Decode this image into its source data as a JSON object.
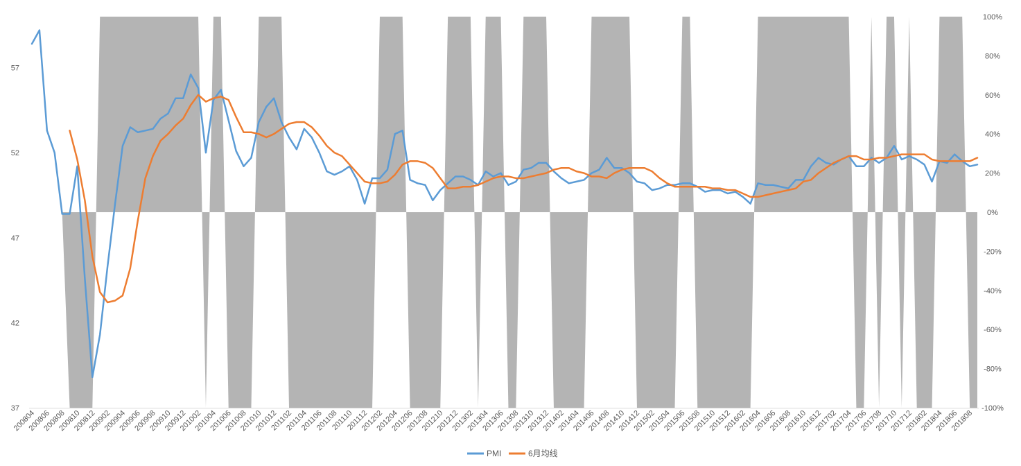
{
  "chart_data": {
    "type": "line",
    "title": "",
    "x": [
      "200804",
      "200805",
      "200806",
      "200807",
      "200808",
      "200809",
      "200810",
      "200811",
      "200812",
      "200901",
      "200902",
      "200903",
      "200904",
      "200905",
      "200906",
      "200907",
      "200908",
      "200909",
      "200910",
      "200911",
      "200912",
      "201001",
      "201002",
      "201003",
      "201004",
      "201005",
      "201006",
      "201007",
      "201008",
      "201009",
      "201010",
      "201011",
      "201012",
      "201101",
      "201102",
      "201103",
      "201104",
      "201105",
      "201106",
      "201107",
      "201108",
      "201109",
      "201110",
      "201111",
      "201112",
      "201201",
      "201202",
      "201203",
      "201204",
      "201205",
      "201206",
      "201207",
      "201208",
      "201209",
      "201210",
      "201211",
      "201212",
      "201301",
      "201302",
      "201303",
      "201304",
      "201305",
      "201306",
      "201307",
      "201308",
      "201309",
      "201310",
      "201311",
      "201312",
      "201401",
      "201402",
      "201403",
      "201404",
      "201405",
      "201406",
      "201407",
      "201408",
      "201409",
      "201410",
      "201411",
      "201412",
      "201501",
      "201502",
      "201503",
      "201504",
      "201505",
      "201506",
      "201507",
      "201508",
      "201509",
      "201510",
      "201511",
      "201512",
      "201601",
      "201602",
      "201603",
      "201604",
      "201605",
      "201606",
      "201607",
      "201608",
      "201609",
      "201610",
      "201611",
      "201612",
      "201701",
      "201702",
      "201703",
      "201704",
      "201705",
      "201706",
      "201707",
      "201708",
      "201709",
      "201710",
      "201711",
      "201712",
      "201801",
      "201802",
      "201803",
      "201804",
      "201805",
      "201806",
      "201807",
      "201808",
      "201809"
    ],
    "x_tick_labels": [
      "200804",
      "200806",
      "200808",
      "200810",
      "200812",
      "200902",
      "200904",
      "200906",
      "200908",
      "200910",
      "200912",
      "201002",
      "201004",
      "201006",
      "201008",
      "201010",
      "201012",
      "201102",
      "201104",
      "201106",
      "201108",
      "201110",
      "201112",
      "201202",
      "201204",
      "201206",
      "201208",
      "201210",
      "201212",
      "201302",
      "201304",
      "201306",
      "201308",
      "201310",
      "201312",
      "201402",
      "201404",
      "201406",
      "201408",
      "201410",
      "201412",
      "201502",
      "201504",
      "201506",
      "201508",
      "201510",
      "201512",
      "201602",
      "201604",
      "201606",
      "201608",
      "201610",
      "201612",
      "201702",
      "201704",
      "201706",
      "201708",
      "201710",
      "201712",
      "201802",
      "201804",
      "201806",
      "201808"
    ],
    "y_left": {
      "ticks": [
        37,
        42,
        47,
        52,
        57
      ],
      "range": [
        37,
        60
      ]
    },
    "y_right": {
      "ticks": [
        "-100%",
        "-80%",
        "-60%",
        "-40%",
        "-20%",
        "0%",
        "20%",
        "40%",
        "60%",
        "80%",
        "100%"
      ],
      "range": [
        -1,
        1
      ]
    },
    "series": [
      {
        "name": "PMI",
        "axis": "left",
        "color": "#5B9BD5",
        "values": [
          58.4,
          59.2,
          53.3,
          52.0,
          48.4,
          48.4,
          51.2,
          44.6,
          38.8,
          41.3,
          45.3,
          49.0,
          52.4,
          53.5,
          53.2,
          53.3,
          53.4,
          54.0,
          54.3,
          55.2,
          55.2,
          56.6,
          55.8,
          52.0,
          55.1,
          55.7,
          53.9,
          52.1,
          51.2,
          51.7,
          53.8,
          54.7,
          55.2,
          53.8,
          52.9,
          52.2,
          53.4,
          52.9,
          52.0,
          50.9,
          50.7,
          50.9,
          51.2,
          50.4,
          49.0,
          50.5,
          50.5,
          51.0,
          53.1,
          53.3,
          50.4,
          50.2,
          50.1,
          49.2,
          49.8,
          50.2,
          50.6,
          50.6,
          50.4,
          50.1,
          50.9,
          50.6,
          50.8,
          50.1,
          50.3,
          51.0,
          51.1,
          51.4,
          51.4,
          50.9,
          50.5,
          50.2,
          50.3,
          50.4,
          50.8,
          51.0,
          51.7,
          51.1,
          51.1,
          50.8,
          50.3,
          50.2,
          49.8,
          49.9,
          50.1,
          50.1,
          50.2,
          50.2,
          50.0,
          49.7,
          49.8,
          49.8,
          49.6,
          49.7,
          49.4,
          49.0,
          50.2,
          50.1,
          50.1,
          50.0,
          49.9,
          50.4,
          50.4,
          51.2,
          51.7,
          51.4,
          51.3,
          51.6,
          51.8,
          51.2,
          51.2,
          51.7,
          51.4,
          51.7,
          52.4,
          51.6,
          51.8,
          51.6,
          51.3,
          50.3,
          51.5,
          51.4,
          51.9,
          51.5,
          51.2,
          51.3
        ]
      },
      {
        "name": "6月均线",
        "axis": "left",
        "color": "#ED7D31",
        "values": [
          null,
          null,
          null,
          null,
          null,
          53.3,
          51.6,
          49.2,
          45.9,
          43.8,
          43.2,
          43.3,
          43.6,
          45.2,
          48.0,
          50.5,
          51.8,
          52.7,
          53.1,
          53.6,
          54.0,
          54.8,
          55.4,
          55.0,
          55.2,
          55.3,
          55.1,
          54.1,
          53.2,
          53.2,
          53.1,
          52.9,
          53.1,
          53.4,
          53.7,
          53.8,
          53.8,
          53.5,
          53.0,
          52.4,
          52.0,
          51.8,
          51.3,
          50.8,
          50.3,
          50.2,
          50.2,
          50.3,
          50.7,
          51.3,
          51.5,
          51.5,
          51.4,
          51.1,
          50.5,
          49.9,
          49.9,
          50.0,
          50.0,
          50.1,
          50.3,
          50.5,
          50.6,
          50.6,
          50.5,
          50.5,
          50.6,
          50.7,
          50.8,
          51.0,
          51.1,
          51.1,
          50.9,
          50.8,
          50.6,
          50.6,
          50.5,
          50.8,
          51.0,
          51.1,
          51.1,
          51.1,
          50.9,
          50.5,
          50.2,
          50.0,
          50.0,
          50.0,
          50.0,
          50.0,
          49.9,
          49.9,
          49.8,
          49.8,
          49.6,
          49.4,
          49.4,
          49.5,
          49.6,
          49.7,
          49.8,
          49.9,
          50.3,
          50.4,
          50.8,
          51.1,
          51.4,
          51.6,
          51.8,
          51.8,
          51.6,
          51.6,
          51.7,
          51.7,
          51.8,
          51.9,
          51.9,
          51.9,
          51.9,
          51.6,
          51.5,
          51.5,
          51.5,
          51.5,
          51.5,
          51.7
        ]
      },
      {
        "name": "",
        "axis": "right",
        "type": "area",
        "color": "#B4B4B4",
        "values": [
          0,
          0,
          0,
          0,
          0,
          -1,
          -1,
          -1,
          -1,
          1,
          1,
          1,
          1,
          1,
          1,
          1,
          1,
          1,
          1,
          1,
          1,
          1,
          1,
          -1,
          1,
          1,
          -1,
          -1,
          -1,
          -1,
          1,
          1,
          1,
          1,
          -1,
          -1,
          -1,
          -1,
          -1,
          -1,
          -1,
          -1,
          -1,
          -1,
          -1,
          -1,
          1,
          1,
          1,
          1,
          -1,
          -1,
          -1,
          -1,
          -1,
          1,
          1,
          1,
          1,
          -1,
          1,
          1,
          1,
          -1,
          -1,
          1,
          1,
          1,
          1,
          -1,
          -1,
          -1,
          -1,
          -1,
          1,
          1,
          1,
          1,
          1,
          1,
          -1,
          -1,
          -1,
          -1,
          -1,
          -1,
          1,
          1,
          -1,
          -1,
          -1,
          -1,
          -1,
          -1,
          -1,
          -1,
          1,
          1,
          1,
          1,
          1,
          1,
          1,
          1,
          1,
          1,
          1,
          1,
          1,
          -1,
          -1,
          1,
          -1,
          1,
          1,
          -1,
          1,
          -1,
          -1,
          -1,
          1,
          1,
          1,
          1,
          -1,
          -1
        ]
      }
    ],
    "legend": {
      "position": "bottom",
      "entries": [
        "PMI",
        "6月均线"
      ]
    },
    "grid": false
  }
}
